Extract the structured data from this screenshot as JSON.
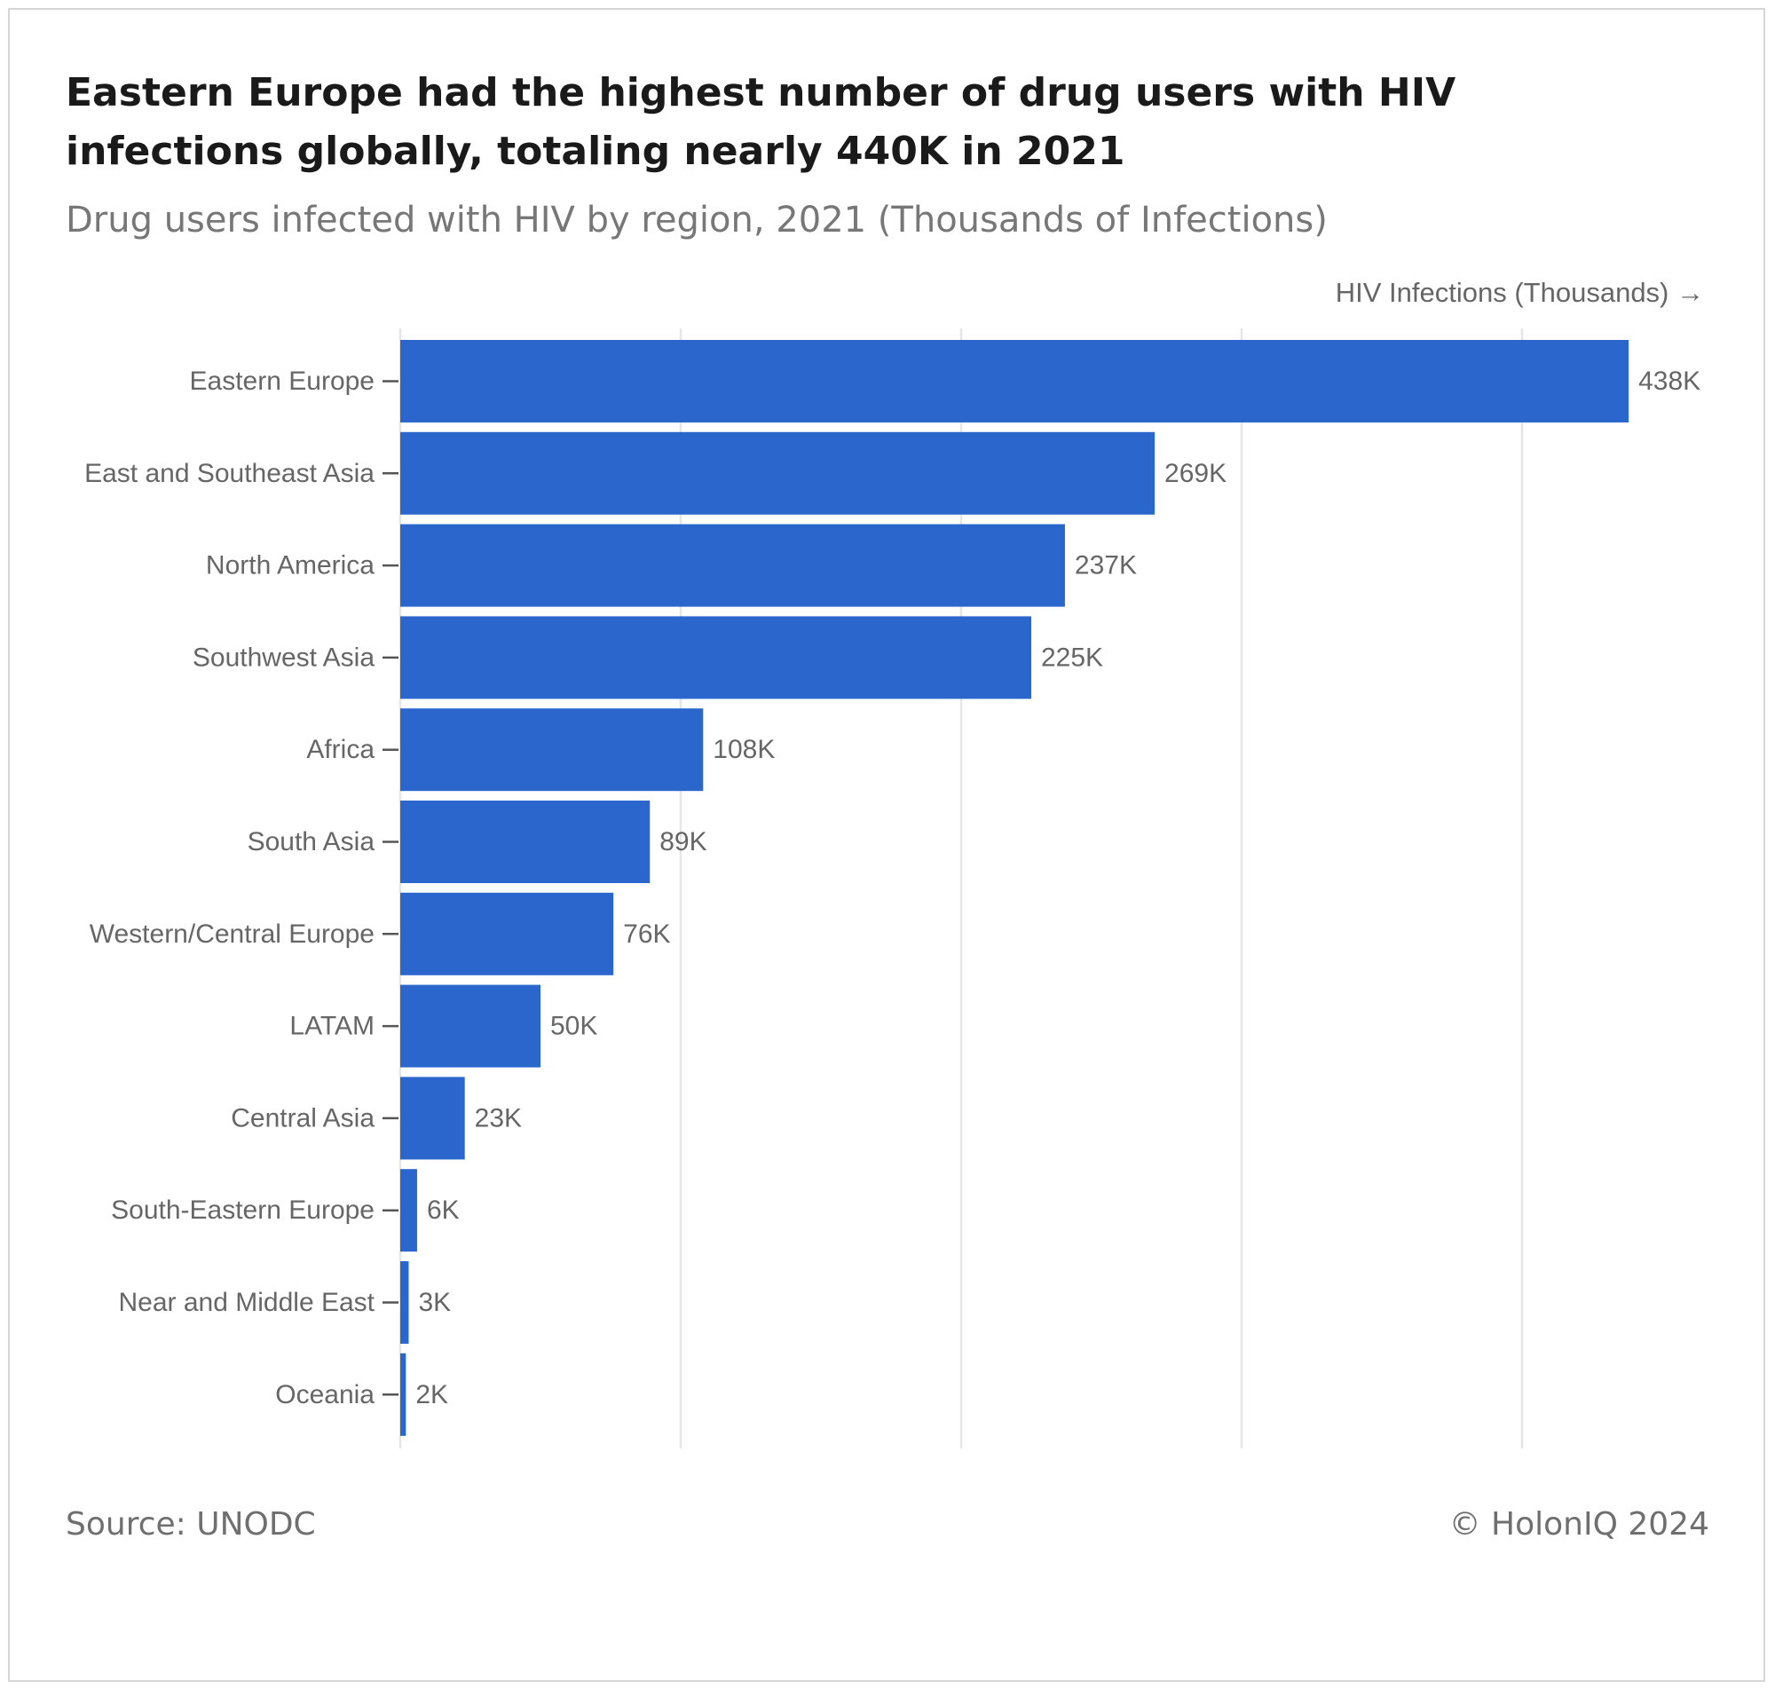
{
  "title": "Eastern Europe had the highest number of drug users with HIV infections globally, totaling nearly 440K in 2021",
  "subtitle": "Drug users infected with HIV by region, 2021 (Thousands of Infections)",
  "source": "Source: UNODC",
  "copyright": "© HolonIQ 2024",
  "colors": {
    "bar": "#2a66cc",
    "grid": "#e6e6e6",
    "label_text": "#666666"
  },
  "chart_data": {
    "type": "bar",
    "orientation": "horizontal",
    "xlabel": "HIV Infections (Thousands) →",
    "categories": [
      "Eastern Europe",
      "East and Southeast Asia",
      "North America",
      "Southwest Asia",
      "Africa",
      "South Asia",
      "Western/Central Europe",
      "LATAM",
      "Central Asia",
      "South-Eastern Europe",
      "Near and Middle East",
      "Oceania"
    ],
    "values": [
      438,
      269,
      237,
      225,
      108,
      89,
      76,
      50,
      23,
      6,
      3,
      2
    ],
    "data_labels": [
      "438K",
      "269K",
      "237K",
      "225K",
      "108K",
      "89K",
      "76K",
      "50K",
      "23K",
      "6K",
      "3K",
      "2K"
    ],
    "xlim": [
      0,
      450
    ],
    "gridlines": [
      0,
      100,
      200,
      300,
      400
    ],
    "grid": true,
    "legend": "none"
  }
}
